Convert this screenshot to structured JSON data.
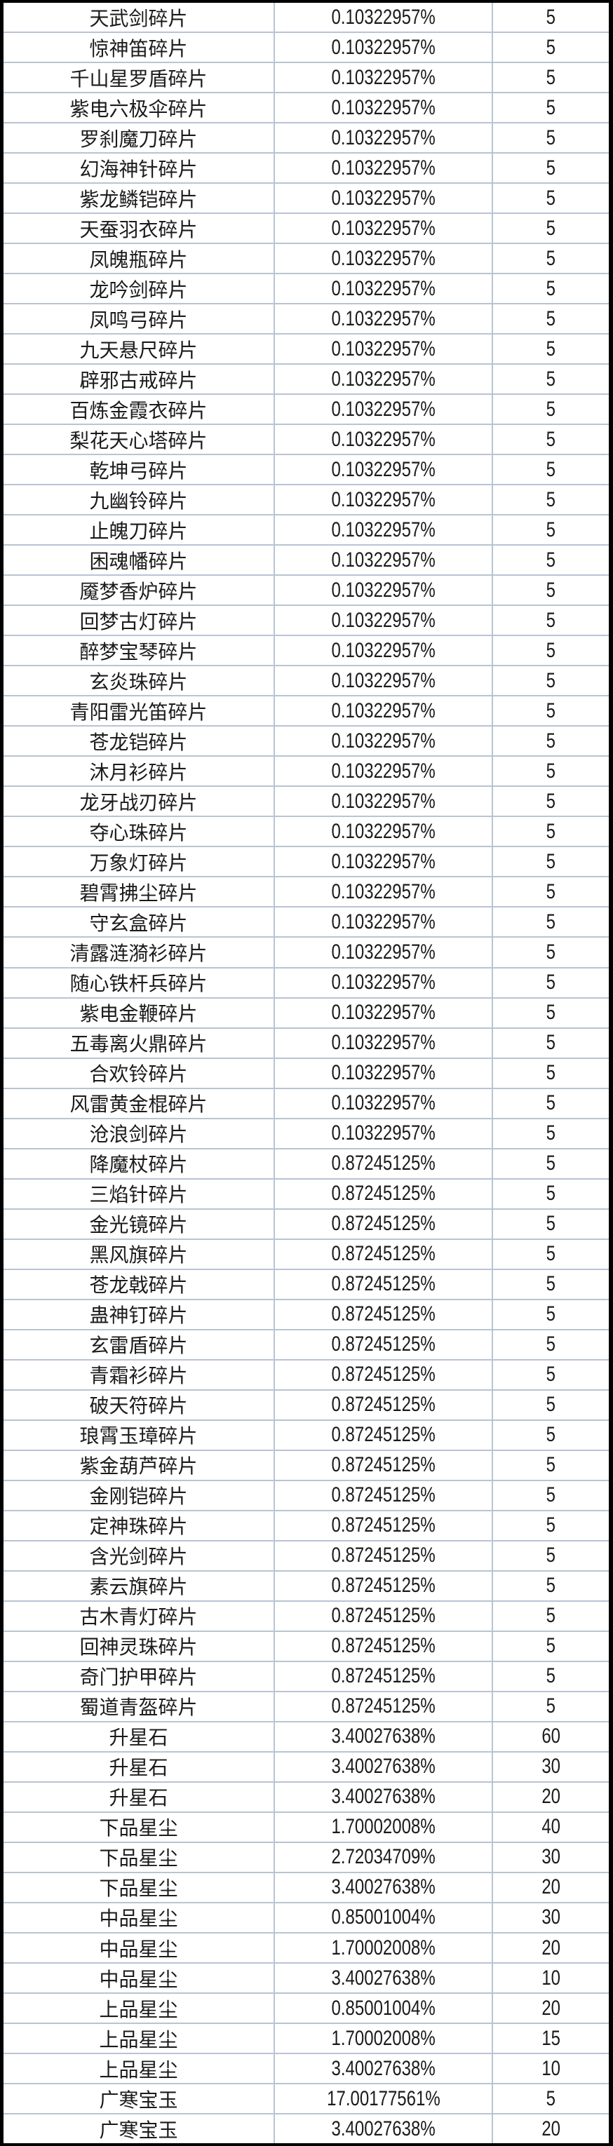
{
  "colors": {
    "outer_border": "#000000",
    "gridline": "#b9c3d4",
    "row_background": "#ffffff",
    "text": "#1b1b1b"
  },
  "table": {
    "rows": [
      {
        "item": "天武剑碎片",
        "rate": "0.10322957%",
        "qty": "5"
      },
      {
        "item": "惊神笛碎片",
        "rate": "0.10322957%",
        "qty": "5"
      },
      {
        "item": "千山星罗盾碎片",
        "rate": "0.10322957%",
        "qty": "5"
      },
      {
        "item": "紫电六极伞碎片",
        "rate": "0.10322957%",
        "qty": "5"
      },
      {
        "item": "罗刹魔刀碎片",
        "rate": "0.10322957%",
        "qty": "5"
      },
      {
        "item": "幻海神针碎片",
        "rate": "0.10322957%",
        "qty": "5"
      },
      {
        "item": "紫龙鳞铠碎片",
        "rate": "0.10322957%",
        "qty": "5"
      },
      {
        "item": "天蚕羽衣碎片",
        "rate": "0.10322957%",
        "qty": "5"
      },
      {
        "item": "凤魄瓶碎片",
        "rate": "0.10322957%",
        "qty": "5"
      },
      {
        "item": "龙吟剑碎片",
        "rate": "0.10322957%",
        "qty": "5"
      },
      {
        "item": "凤鸣弓碎片",
        "rate": "0.10322957%",
        "qty": "5"
      },
      {
        "item": "九天悬尺碎片",
        "rate": "0.10322957%",
        "qty": "5"
      },
      {
        "item": "辟邪古戒碎片",
        "rate": "0.10322957%",
        "qty": "5"
      },
      {
        "item": "百炼金霞衣碎片",
        "rate": "0.10322957%",
        "qty": "5"
      },
      {
        "item": "梨花天心塔碎片",
        "rate": "0.10322957%",
        "qty": "5"
      },
      {
        "item": "乾坤弓碎片",
        "rate": "0.10322957%",
        "qty": "5"
      },
      {
        "item": "九幽铃碎片",
        "rate": "0.10322957%",
        "qty": "5"
      },
      {
        "item": "止魄刀碎片",
        "rate": "0.10322957%",
        "qty": "5"
      },
      {
        "item": "困魂幡碎片",
        "rate": "0.10322957%",
        "qty": "5"
      },
      {
        "item": "魇梦香炉碎片",
        "rate": "0.10322957%",
        "qty": "5"
      },
      {
        "item": "回梦古灯碎片",
        "rate": "0.10322957%",
        "qty": "5"
      },
      {
        "item": "醉梦宝琴碎片",
        "rate": "0.10322957%",
        "qty": "5"
      },
      {
        "item": "玄炎珠碎片",
        "rate": "0.10322957%",
        "qty": "5"
      },
      {
        "item": "青阳雷光笛碎片",
        "rate": "0.10322957%",
        "qty": "5"
      },
      {
        "item": "苍龙铠碎片",
        "rate": "0.10322957%",
        "qty": "5"
      },
      {
        "item": "沐月衫碎片",
        "rate": "0.10322957%",
        "qty": "5"
      },
      {
        "item": "龙牙战刃碎片",
        "rate": "0.10322957%",
        "qty": "5"
      },
      {
        "item": "夺心珠碎片",
        "rate": "0.10322957%",
        "qty": "5"
      },
      {
        "item": "万象灯碎片",
        "rate": "0.10322957%",
        "qty": "5"
      },
      {
        "item": "碧霄拂尘碎片",
        "rate": "0.10322957%",
        "qty": "5"
      },
      {
        "item": "守玄盒碎片",
        "rate": "0.10322957%",
        "qty": "5"
      },
      {
        "item": "清露涟漪衫碎片",
        "rate": "0.10322957%",
        "qty": "5"
      },
      {
        "item": "随心铁杆兵碎片",
        "rate": "0.10322957%",
        "qty": "5"
      },
      {
        "item": "紫电金鞭碎片",
        "rate": "0.10322957%",
        "qty": "5"
      },
      {
        "item": "五毒离火鼎碎片",
        "rate": "0.10322957%",
        "qty": "5"
      },
      {
        "item": "合欢铃碎片",
        "rate": "0.10322957%",
        "qty": "5"
      },
      {
        "item": "风雷黄金棍碎片",
        "rate": "0.10322957%",
        "qty": "5"
      },
      {
        "item": "沧浪剑碎片",
        "rate": "0.10322957%",
        "qty": "5"
      },
      {
        "item": "降魔杖碎片",
        "rate": "0.87245125%",
        "qty": "5"
      },
      {
        "item": "三焰针碎片",
        "rate": "0.87245125%",
        "qty": "5"
      },
      {
        "item": "金光镜碎片",
        "rate": "0.87245125%",
        "qty": "5"
      },
      {
        "item": "黑风旗碎片",
        "rate": "0.87245125%",
        "qty": "5"
      },
      {
        "item": "苍龙戟碎片",
        "rate": "0.87245125%",
        "qty": "5"
      },
      {
        "item": "蛊神钉碎片",
        "rate": "0.87245125%",
        "qty": "5"
      },
      {
        "item": "玄雷盾碎片",
        "rate": "0.87245125%",
        "qty": "5"
      },
      {
        "item": "青霜衫碎片",
        "rate": "0.87245125%",
        "qty": "5"
      },
      {
        "item": "破天符碎片",
        "rate": "0.87245125%",
        "qty": "5"
      },
      {
        "item": "琅霄玉璋碎片",
        "rate": "0.87245125%",
        "qty": "5"
      },
      {
        "item": "紫金葫芦碎片",
        "rate": "0.87245125%",
        "qty": "5"
      },
      {
        "item": "金刚铠碎片",
        "rate": "0.87245125%",
        "qty": "5"
      },
      {
        "item": "定神珠碎片",
        "rate": "0.87245125%",
        "qty": "5"
      },
      {
        "item": "含光剑碎片",
        "rate": "0.87245125%",
        "qty": "5"
      },
      {
        "item": "素云旗碎片",
        "rate": "0.87245125%",
        "qty": "5"
      },
      {
        "item": "古木青灯碎片",
        "rate": "0.87245125%",
        "qty": "5"
      },
      {
        "item": "回神灵珠碎片",
        "rate": "0.87245125%",
        "qty": "5"
      },
      {
        "item": "奇门护甲碎片",
        "rate": "0.87245125%",
        "qty": "5"
      },
      {
        "item": "蜀道青盔碎片",
        "rate": "0.87245125%",
        "qty": "5"
      },
      {
        "item": "升星石",
        "rate": "3.40027638%",
        "qty": "60"
      },
      {
        "item": "升星石",
        "rate": "3.40027638%",
        "qty": "30"
      },
      {
        "item": "升星石",
        "rate": "3.40027638%",
        "qty": "20"
      },
      {
        "item": "下品星尘",
        "rate": "1.70002008%",
        "qty": "40"
      },
      {
        "item": "下品星尘",
        "rate": "2.72034709%",
        "qty": "30"
      },
      {
        "item": "下品星尘",
        "rate": "3.40027638%",
        "qty": "20"
      },
      {
        "item": "中品星尘",
        "rate": "0.85001004%",
        "qty": "30"
      },
      {
        "item": "中品星尘",
        "rate": "1.70002008%",
        "qty": "20"
      },
      {
        "item": "中品星尘",
        "rate": "3.40027638%",
        "qty": "10"
      },
      {
        "item": "上品星尘",
        "rate": "0.85001004%",
        "qty": "20"
      },
      {
        "item": "上品星尘",
        "rate": "1.70002008%",
        "qty": "15"
      },
      {
        "item": "上品星尘",
        "rate": "3.40027638%",
        "qty": "10"
      },
      {
        "item": "广寒宝玉",
        "rate": "17.00177561%",
        "qty": "5"
      },
      {
        "item": "广寒宝玉",
        "rate": "3.40027638%",
        "qty": "20"
      }
    ]
  }
}
